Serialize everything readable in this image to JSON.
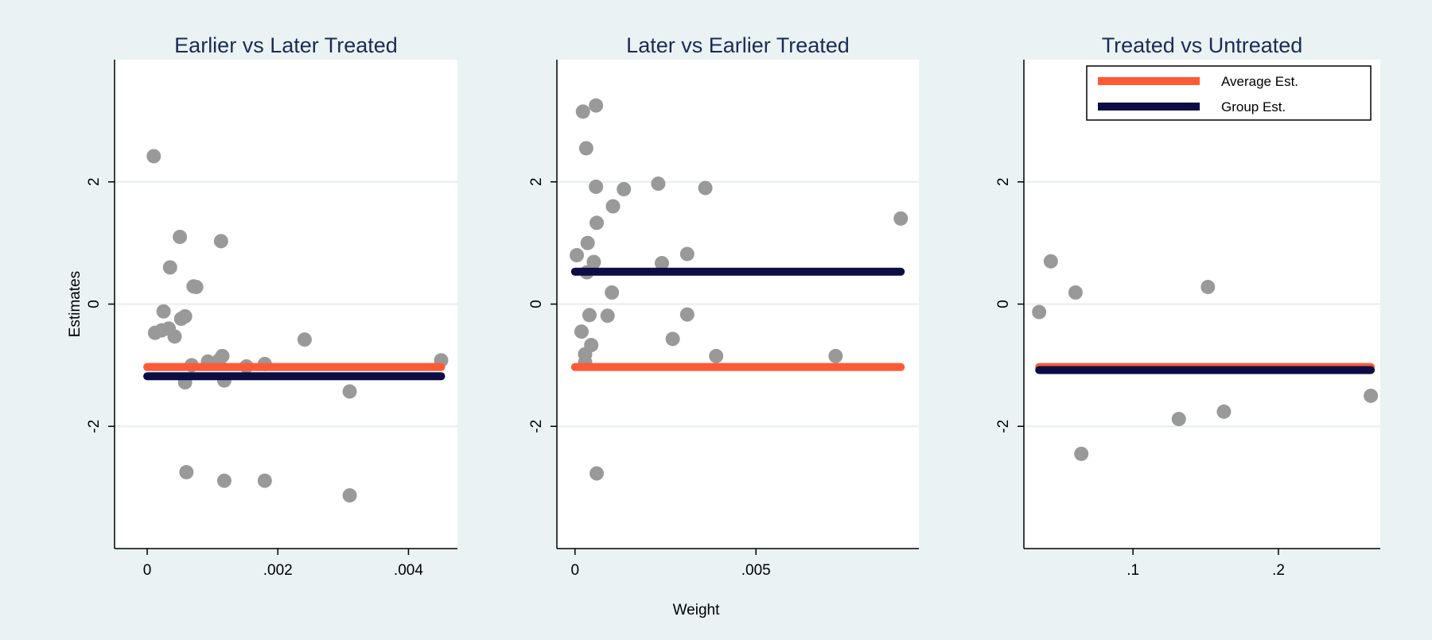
{
  "chart_data": [
    {
      "type": "scatter",
      "title": "Earlier vs Later Treated",
      "ylabel": "Estimates",
      "xlim": [
        -0.0005,
        0.00475
      ],
      "ylim": [
        -4,
        4
      ],
      "x_ticks": [
        {
          "v": 0,
          "label": "0"
        },
        {
          "v": 0.002,
          "label": ".002"
        },
        {
          "v": 0.004,
          "label": ".004"
        }
      ],
      "y_ticks": [
        {
          "v": -2,
          "label": "-2"
        },
        {
          "v": 0,
          "label": "0"
        },
        {
          "v": 2,
          "label": "2"
        }
      ],
      "grid": true,
      "points": [
        [
          0.0001,
          2.42
        ],
        [
          0.00012,
          -0.47
        ],
        [
          0.00022,
          -0.43
        ],
        [
          0.00025,
          -0.12
        ],
        [
          0.00033,
          -0.4
        ],
        [
          0.00035,
          0.6
        ],
        [
          0.00042,
          -0.53
        ],
        [
          0.0005,
          1.1
        ],
        [
          0.00052,
          -0.24
        ],
        [
          0.00058,
          -0.2
        ],
        [
          0.00058,
          -1.28
        ],
        [
          0.0006,
          -2.75
        ],
        [
          0.00068,
          -1.0
        ],
        [
          0.00071,
          0.29
        ],
        [
          0.00075,
          0.28
        ],
        [
          0.00093,
          -0.94
        ],
        [
          0.0011,
          -0.92
        ],
        [
          0.00113,
          1.03
        ],
        [
          0.00115,
          -0.85
        ],
        [
          0.00118,
          -1.25
        ],
        [
          0.00118,
          -2.89
        ],
        [
          0.00152,
          -1.02
        ],
        [
          0.0018,
          -0.98
        ],
        [
          0.0018,
          -2.89
        ],
        [
          0.00241,
          -0.58
        ],
        [
          0.0031,
          -1.43
        ],
        [
          0.0031,
          -3.13
        ],
        [
          0.0045,
          -0.92
        ]
      ],
      "average_est": -1.03,
      "group_est": -1.18,
      "line_x": [
        0.0,
        0.0045
      ]
    },
    {
      "type": "scatter",
      "title": "Later vs Earlier Treated",
      "xlim": [
        -0.0005,
        0.0095
      ],
      "ylim": [
        -4,
        4
      ],
      "x_ticks": [
        {
          "v": 0,
          "label": "0"
        },
        {
          "v": 0.005,
          "label": ".005"
        }
      ],
      "y_ticks": [
        {
          "v": -2,
          "label": "-2"
        },
        {
          "v": 0,
          "label": "0"
        },
        {
          "v": 2,
          "label": "2"
        }
      ],
      "grid": true,
      "points": [
        [
          5e-05,
          0.8
        ],
        [
          0.00018,
          -0.45
        ],
        [
          0.00022,
          3.15
        ],
        [
          0.00028,
          -0.82
        ],
        [
          0.00028,
          -0.95
        ],
        [
          0.00031,
          2.55
        ],
        [
          0.00033,
          0.52
        ],
        [
          0.00035,
          1.0
        ],
        [
          0.0004,
          -0.18
        ],
        [
          0.00045,
          -0.67
        ],
        [
          0.00052,
          0.69
        ],
        [
          0.00058,
          1.92
        ],
        [
          0.00058,
          3.25
        ],
        [
          0.0006,
          1.33
        ],
        [
          0.0006,
          -2.77
        ],
        [
          0.0009,
          -0.19
        ],
        [
          0.00102,
          0.19
        ],
        [
          0.00105,
          1.6
        ],
        [
          0.00135,
          1.88
        ],
        [
          0.0023,
          1.97
        ],
        [
          0.0024,
          0.67
        ],
        [
          0.0027,
          -0.57
        ],
        [
          0.0031,
          0.82
        ],
        [
          0.0031,
          -0.17
        ],
        [
          0.0036,
          1.9
        ],
        [
          0.0039,
          -0.85
        ],
        [
          0.0072,
          -0.85
        ],
        [
          0.009,
          1.4
        ]
      ],
      "average_est": -1.03,
      "group_est": 0.53,
      "line_x": [
        0.0,
        0.009
      ]
    },
    {
      "type": "scatter",
      "title": "Treated vs Untreated",
      "xlim": [
        0.025,
        0.27
      ],
      "ylim": [
        -4,
        4
      ],
      "x_ticks": [
        {
          "v": 0.1,
          "label": ".1"
        },
        {
          "v": 0.2,
          "label": ".2"
        }
      ],
      "y_ticks": [
        {
          "v": -2,
          "label": "-2"
        },
        {
          "v": 0,
          "label": "0"
        },
        {
          "v": 2,
          "label": "2"
        }
      ],
      "grid": true,
      "points": [
        [
          0.0355,
          -0.13
        ],
        [
          0.0435,
          0.7
        ],
        [
          0.0605,
          0.19
        ],
        [
          0.0645,
          -2.45
        ],
        [
          0.1315,
          -1.88
        ],
        [
          0.1515,
          0.28
        ],
        [
          0.1625,
          -1.76
        ],
        [
          0.2635,
          -1.5
        ]
      ],
      "average_est": -1.03,
      "group_est": -1.08,
      "line_x": [
        0.0355,
        0.2635
      ],
      "legend": {
        "position": "top-right",
        "items": [
          {
            "label": "Average Est.",
            "key": "average"
          },
          {
            "label": "Group Est.",
            "key": "group"
          }
        ]
      }
    }
  ],
  "xlabel": "Weight",
  "colors": {
    "background": "#eaf2f3",
    "plot_area": "#ffffff",
    "gridline": "#e6eef0",
    "point": "#999999",
    "average_line": "#ff5a36",
    "group_line": "#0d0d45",
    "title": "#1a2c55"
  }
}
